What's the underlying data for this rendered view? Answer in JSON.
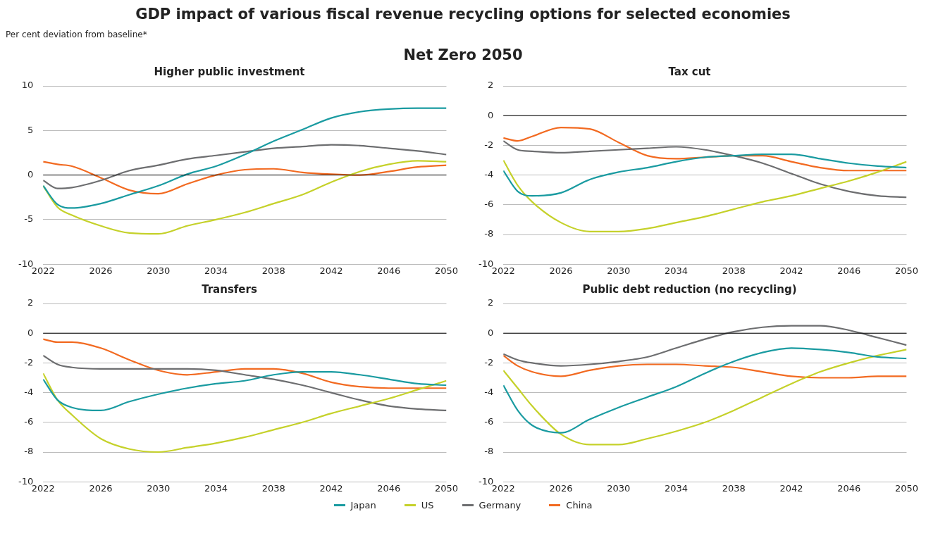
{
  "chart_data": [
    {
      "type": "line",
      "title": "Higher public investment",
      "annotations": [
        "GDP impact of various fiscal revenue recycling options for selected economies",
        "Per cent deviation from baseline*",
        "Net Zero 2050"
      ],
      "x": [
        2022,
        2023,
        2024,
        2026,
        2028,
        2030,
        2032,
        2034,
        2036,
        2038,
        2040,
        2042,
        2044,
        2046,
        2048,
        2050
      ],
      "xlim": [
        2022,
        2050
      ],
      "xticks": [
        2022,
        2026,
        2030,
        2034,
        2038,
        2042,
        2046,
        2050
      ],
      "ylim": [
        -10,
        10
      ],
      "yticks": [
        -10,
        -5,
        0,
        5,
        10
      ],
      "grid": "y",
      "marker": "none",
      "line_style": "solid",
      "ref_lines": [
        {
          "axis": "y",
          "value": 0,
          "color": "#000000"
        }
      ],
      "series": [
        {
          "color": "#1a9ba1",
          "values": [
            -1.2,
            -3.3,
            -3.7,
            -3.2,
            -2.2,
            -1.2,
            0.1,
            1.0,
            2.3,
            3.8,
            5.1,
            6.4,
            7.1,
            7.4,
            7.5,
            7.5
          ]
        },
        {
          "color": "#c5d12a",
          "values": [
            -1.2,
            -3.6,
            -4.5,
            -5.7,
            -6.5,
            -6.6,
            -5.7,
            -5.0,
            -4.2,
            -3.2,
            -2.2,
            -0.8,
            0.4,
            1.2,
            1.6,
            1.5
          ]
        },
        {
          "color": "#6d6e70",
          "values": [
            -0.6,
            -1.5,
            -1.4,
            -0.6,
            0.5,
            1.1,
            1.8,
            2.2,
            2.6,
            3.0,
            3.2,
            3.4,
            3.3,
            3.0,
            2.7,
            2.3
          ]
        },
        {
          "color": "#f26a21",
          "values": [
            1.5,
            1.2,
            1.0,
            -0.3,
            -1.7,
            -2.1,
            -1.0,
            0.0,
            0.6,
            0.7,
            0.3,
            0.1,
            0.0,
            0.4,
            0.9,
            1.1
          ]
        }
      ]
    },
    {
      "type": "line",
      "title": "Tax cut",
      "x": [
        2022,
        2023,
        2024,
        2026,
        2028,
        2030,
        2032,
        2034,
        2036,
        2038,
        2040,
        2042,
        2044,
        2046,
        2048,
        2050
      ],
      "xlim": [
        2022,
        2050
      ],
      "xticks": [
        2022,
        2026,
        2030,
        2034,
        2038,
        2042,
        2046,
        2050
      ],
      "ylim": [
        -10,
        2
      ],
      "yticks": [
        -10,
        -8,
        -6,
        -4,
        -2,
        0,
        2
      ],
      "grid": "y",
      "marker": "none",
      "line_style": "solid",
      "ref_lines": [
        {
          "axis": "y",
          "value": 0,
          "color": "#000000"
        }
      ],
      "series": [
        {
          "color": "#1a9ba1",
          "values": [
            -3.7,
            -5.1,
            -5.4,
            -5.2,
            -4.3,
            -3.8,
            -3.5,
            -3.1,
            -2.8,
            -2.7,
            -2.6,
            -2.6,
            -2.9,
            -3.2,
            -3.4,
            -3.5
          ]
        },
        {
          "color": "#c5d12a",
          "values": [
            -3.0,
            -4.7,
            -5.8,
            -7.2,
            -7.8,
            -7.8,
            -7.6,
            -7.2,
            -6.8,
            -6.3,
            -5.8,
            -5.4,
            -4.9,
            -4.4,
            -3.8,
            -3.1
          ]
        },
        {
          "color": "#6d6e70",
          "values": [
            -1.7,
            -2.3,
            -2.4,
            -2.5,
            -2.4,
            -2.3,
            -2.2,
            -2.1,
            -2.3,
            -2.7,
            -3.2,
            -3.9,
            -4.6,
            -5.1,
            -5.4,
            -5.5
          ]
        },
        {
          "color": "#f26a21",
          "values": [
            -1.5,
            -1.7,
            -1.4,
            -0.8,
            -0.9,
            -1.8,
            -2.7,
            -2.9,
            -2.8,
            -2.7,
            -2.7,
            -3.1,
            -3.5,
            -3.7,
            -3.7,
            -3.7
          ]
        }
      ]
    },
    {
      "type": "line",
      "title": "Transfers",
      "x": [
        2022,
        2023,
        2024,
        2026,
        2028,
        2030,
        2032,
        2034,
        2036,
        2038,
        2040,
        2042,
        2044,
        2046,
        2048,
        2050
      ],
      "xlim": [
        2022,
        2050
      ],
      "xticks": [
        2022,
        2026,
        2030,
        2034,
        2038,
        2042,
        2046,
        2050
      ],
      "ylim": [
        -10,
        2
      ],
      "yticks": [
        -10,
        -8,
        -6,
        -4,
        -2,
        0,
        2
      ],
      "grid": "y",
      "marker": "none",
      "line_style": "solid",
      "ref_lines": [
        {
          "axis": "y",
          "value": 0,
          "color": "#000000"
        }
      ],
      "series": [
        {
          "color": "#1a9ba1",
          "values": [
            -3.1,
            -4.5,
            -5.0,
            -5.2,
            -4.6,
            -4.1,
            -3.7,
            -3.4,
            -3.2,
            -2.8,
            -2.6,
            -2.6,
            -2.8,
            -3.1,
            -3.4,
            -3.5
          ]
        },
        {
          "color": "#c5d12a",
          "values": [
            -2.7,
            -4.5,
            -5.5,
            -7.1,
            -7.8,
            -8.0,
            -7.7,
            -7.4,
            -7.0,
            -6.5,
            -6.0,
            -5.4,
            -4.9,
            -4.4,
            -3.8,
            -3.2
          ]
        },
        {
          "color": "#6d6e70",
          "values": [
            -1.5,
            -2.1,
            -2.3,
            -2.4,
            -2.4,
            -2.4,
            -2.4,
            -2.5,
            -2.8,
            -3.1,
            -3.5,
            -4.0,
            -4.5,
            -4.9,
            -5.1,
            -5.2
          ]
        },
        {
          "color": "#f26a21",
          "values": [
            -0.4,
            -0.6,
            -0.6,
            -1.0,
            -1.8,
            -2.5,
            -2.8,
            -2.6,
            -2.4,
            -2.4,
            -2.7,
            -3.3,
            -3.6,
            -3.7,
            -3.7,
            -3.7
          ]
        }
      ]
    },
    {
      "type": "line",
      "title": "Public debt reduction (no recycling)",
      "x": [
        2022,
        2023,
        2024,
        2026,
        2028,
        2030,
        2032,
        2034,
        2036,
        2038,
        2040,
        2042,
        2044,
        2046,
        2048,
        2050
      ],
      "xlim": [
        2022,
        2050
      ],
      "xticks": [
        2022,
        2026,
        2030,
        2034,
        2038,
        2042,
        2046,
        2050
      ],
      "ylim": [
        -10,
        2
      ],
      "yticks": [
        -10,
        -8,
        -6,
        -4,
        -2,
        0,
        2
      ],
      "grid": "y",
      "marker": "none",
      "line_style": "solid",
      "legend": "bottom",
      "ref_lines": [
        {
          "axis": "y",
          "value": 0,
          "color": "#000000"
        }
      ],
      "series": [
        {
          "name": "Japan",
          "color": "#1a9ba1",
          "values": [
            -3.5,
            -5.2,
            -6.2,
            -6.7,
            -5.8,
            -5.0,
            -4.3,
            -3.6,
            -2.7,
            -1.9,
            -1.3,
            -1.0,
            -1.1,
            -1.3,
            -1.6,
            -1.7
          ]
        },
        {
          "name": "US",
          "color": "#c5d12a",
          "values": [
            -2.5,
            -3.7,
            -4.9,
            -6.8,
            -7.5,
            -7.5,
            -7.1,
            -6.6,
            -6.0,
            -5.2,
            -4.3,
            -3.4,
            -2.6,
            -2.0,
            -1.5,
            -1.1
          ]
        },
        {
          "name": "Germany",
          "color": "#6d6e70",
          "values": [
            -1.4,
            -1.8,
            -2.0,
            -2.2,
            -2.1,
            -1.9,
            -1.6,
            -1.0,
            -0.4,
            0.1,
            0.4,
            0.5,
            0.5,
            0.2,
            -0.3,
            -0.8
          ]
        },
        {
          "name": "China",
          "color": "#f26a21",
          "values": [
            -1.5,
            -2.2,
            -2.6,
            -2.9,
            -2.5,
            -2.2,
            -2.1,
            -2.1,
            -2.2,
            -2.3,
            -2.6,
            -2.9,
            -3.0,
            -3.0,
            -2.9,
            -2.9
          ]
        }
      ]
    }
  ]
}
